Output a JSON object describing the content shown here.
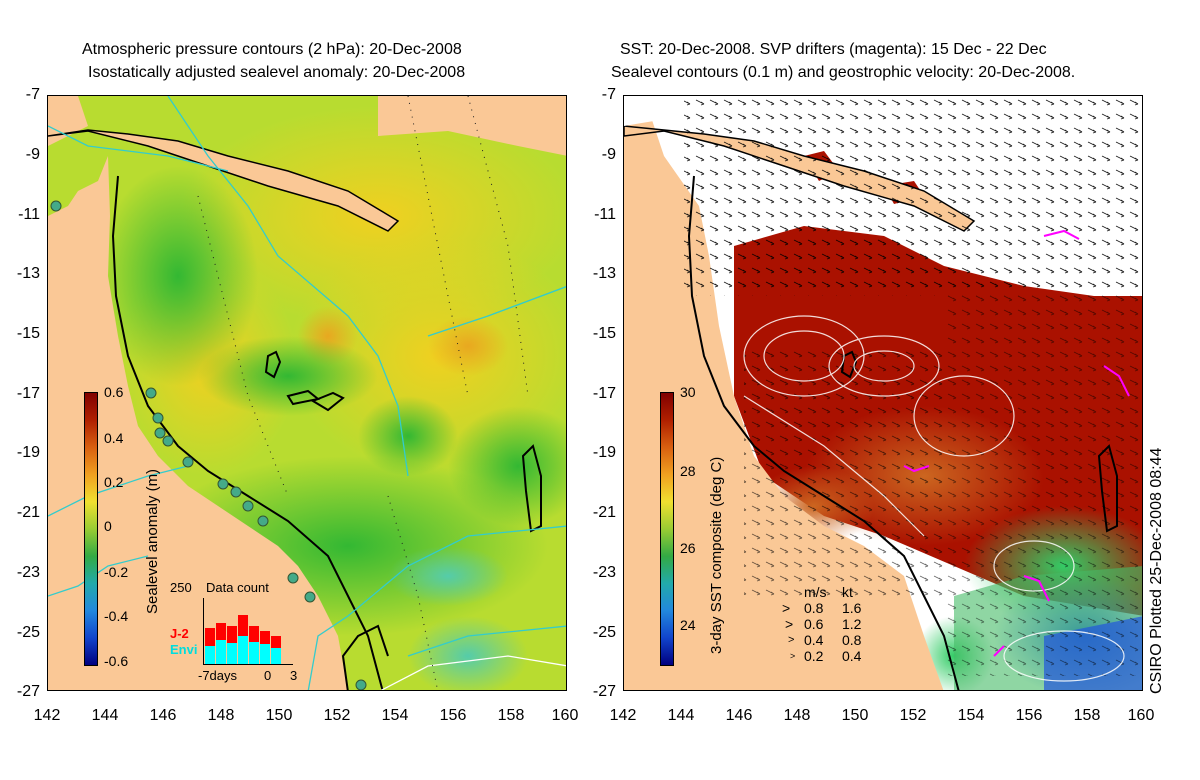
{
  "left_panel": {
    "title_line1": "Atmospheric pressure contours (2 hPa): 20-Dec-2008",
    "title_line2": "Isostatically adjusted sealevel anomaly: 20-Dec-2008",
    "colorbar_label": "Sealevel anomaly (m)",
    "colorbar_ticks": [
      "0.6",
      "0.4",
      "0.2",
      "0",
      "-0.2",
      "-0.4",
      "-0.6"
    ],
    "inset": {
      "title": "Data count",
      "y_max_label": "250",
      "x_labels": [
        "-7days",
        "0",
        "3"
      ],
      "legend_j2": "J-2",
      "legend_envi": "Envi",
      "j2_color": "#ff0000",
      "envi_color": "#00ffff"
    }
  },
  "right_panel": {
    "title_line1": "SST: 20-Dec-2008. SVP drifters (magenta): 15 Dec - 22 Dec",
    "title_line2": "Sealevel contours (0.1 m) and geostrophic velocity: 20-Dec-2008.",
    "colorbar_label": "3-day SST composite (deg C)",
    "colorbar_ticks": [
      "30",
      "28",
      "26",
      "24"
    ],
    "velocity_key": {
      "header_ms": "m/s",
      "header_kt": "kt",
      "rows": [
        {
          "ms": "0.8",
          "kt": "1.6"
        },
        {
          "ms": "0.6",
          "kt": "1.2"
        },
        {
          "ms": "0.4",
          "kt": "0.8"
        },
        {
          "ms": "0.2",
          "kt": "0.4"
        }
      ]
    }
  },
  "axes": {
    "y_ticks": [
      "-7",
      "-9",
      "-11",
      "-13",
      "-15",
      "-17",
      "-19",
      "-21",
      "-23",
      "-25",
      "-27"
    ],
    "x_ticks": [
      "142",
      "144",
      "146",
      "148",
      "150",
      "152",
      "154",
      "156",
      "158",
      "160"
    ]
  },
  "credit": "CSIRO Plotted 25-Dec-2008 08:44",
  "colors": {
    "land": "#fac896",
    "ocean_green": "#66cc33",
    "ocean_yellow": "#d8e830",
    "sst_hot": "#aa1100",
    "sst_cool": "#2255dd",
    "contour_cyan": "#33cccc",
    "drifter_magenta": "#ff00ff"
  }
}
